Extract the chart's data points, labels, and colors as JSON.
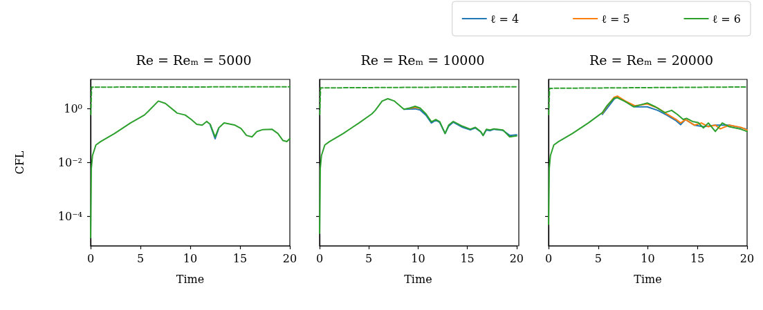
{
  "chart_data": [
    {
      "type": "line",
      "title": "Re = Reₘ = 5000",
      "xlabel": "Time",
      "ylabel": "CFL",
      "log": "y",
      "marker": "none",
      "xlim": [
        0,
        20
      ],
      "xticks": [
        0,
        5,
        10,
        15,
        20
      ],
      "ylim": [
        8e-06,
        12
      ],
      "yticks": [
        {
          "value": 1,
          "label": "10⁰"
        },
        {
          "value": 0.01,
          "label": "10⁻²"
        },
        {
          "value": 0.0001,
          "label": "10⁻⁴"
        }
      ],
      "series": [
        {
          "color": "#1f77b4",
          "x": [
            12,
            12.5,
            12.86
          ],
          "values": [
            0.25,
            0.075,
            0.18
          ]
        },
        {
          "color": "#2ca02c",
          "x": [
            0,
            0.07,
            0.19,
            0.53,
            1,
            2.4,
            4,
            5.4,
            5.77,
            6.8,
            7.5,
            8.7,
            9.5,
            10.1,
            10.65,
            11.2,
            11.65,
            12,
            12.5,
            12.86,
            13.4,
            14.5,
            15.1,
            15.65,
            16.2,
            16.7,
            17.3,
            18.2,
            18.8,
            19.3,
            19.7,
            20
          ],
          "values": [
            1.6e-05,
            0.006,
            0.018,
            0.044,
            0.059,
            0.118,
            0.29,
            0.57,
            0.77,
            1.88,
            1.55,
            0.67,
            0.57,
            0.39,
            0.26,
            0.24,
            0.33,
            0.26,
            0.088,
            0.19,
            0.29,
            0.24,
            0.18,
            0.1,
            0.088,
            0.14,
            0.165,
            0.17,
            0.118,
            0.065,
            0.059,
            0.076
          ]
        },
        {
          "color": "#2ca02c",
          "line_style": "dashed",
          "x": [
            0.02,
            0.1,
            20
          ],
          "values": [
            0.6,
            6.2,
            6.4
          ]
        }
      ]
    },
    {
      "type": "line",
      "title": "Re = Reₘ = 10000",
      "xlabel": "Time",
      "log": "y",
      "marker": "none",
      "tick_labels": "x",
      "xlim": [
        0,
        20
      ],
      "xticks": [
        0,
        5,
        10,
        15,
        20
      ],
      "ylim": [
        8e-06,
        12
      ],
      "yticks": [
        {
          "value": 1,
          "label": null
        },
        {
          "value": 0.01,
          "label": null
        },
        {
          "value": 0.0001,
          "label": null
        }
      ],
      "series": [
        {
          "color": "#1f77b4",
          "x": [
            8.56,
            9.14,
            9.7,
            10.2,
            10.8,
            11.35,
            11.8,
            12.2,
            12.74,
            13.1,
            13.56,
            14.5,
            15.3,
            15.8,
            16.35,
            16.6,
            16.93,
            17.3,
            17.7,
            18.6,
            19.3,
            20
          ],
          "values": [
            0.94,
            0.95,
            0.97,
            0.88,
            0.56,
            0.29,
            0.37,
            0.3,
            0.118,
            0.22,
            0.31,
            0.2,
            0.16,
            0.19,
            0.135,
            0.1,
            0.16,
            0.15,
            0.17,
            0.155,
            0.1,
            0.105
          ]
        },
        {
          "color": "#ff7f0e",
          "x": [
            9.14,
            9.7,
            10.2
          ],
          "values": [
            1.0,
            1.1,
            1.0
          ]
        },
        {
          "color": "#2ca02c",
          "x": [
            0,
            0.07,
            0.19,
            0.53,
            1,
            2.4,
            4,
            5.3,
            5.65,
            6.35,
            6.93,
            7.6,
            8.56,
            9.14,
            9.7,
            10.2,
            10.8,
            11.35,
            11.8,
            12.2,
            12.74,
            13.1,
            13.56,
            14.5,
            15.3,
            15.8,
            16.35,
            16.6,
            16.93,
            17.3,
            17.7,
            18.6,
            19.3,
            20
          ],
          "values": [
            2.3e-05,
            0.006,
            0.018,
            0.044,
            0.059,
            0.118,
            0.29,
            0.63,
            0.85,
            1.88,
            2.3,
            1.88,
            0.94,
            1.04,
            1.2,
            1.04,
            0.63,
            0.32,
            0.39,
            0.32,
            0.118,
            0.24,
            0.33,
            0.22,
            0.17,
            0.2,
            0.14,
            0.1,
            0.17,
            0.16,
            0.175,
            0.16,
            0.088,
            0.096
          ]
        },
        {
          "color": "#2ca02c",
          "line_style": "dashed",
          "x": [
            0.02,
            0.1,
            20
          ],
          "values": [
            0.6,
            5.8,
            6.4
          ]
        }
      ]
    },
    {
      "type": "line",
      "title": "Re = Reₘ = 20000",
      "xlabel": "Time",
      "log": "y",
      "marker": "none",
      "tick_labels": "x",
      "legend": "top left",
      "xlim": [
        0,
        20
      ],
      "xticks": [
        0,
        5,
        10,
        15,
        20
      ],
      "ylim": [
        8e-06,
        12
      ],
      "yticks": [
        {
          "value": 1,
          "label": null
        },
        {
          "value": 0.01,
          "label": null
        },
        {
          "value": 0.0001,
          "label": null
        }
      ],
      "series": [
        {
          "name": "ℓ = 4",
          "color": "#1f77b4",
          "x": [
            5.42,
            5.88,
            6.6,
            6.93,
            7.74,
            8.7,
            9.95,
            11,
            11.9,
            12.86,
            13.3,
            13.8,
            14.7,
            15.6,
            16.8,
            18.2,
            20
          ],
          "values": [
            0.6,
            1.0,
            2.2,
            2.7,
            1.8,
            1.15,
            1.15,
            0.85,
            0.57,
            0.35,
            0.25,
            0.39,
            0.24,
            0.21,
            0.24,
            0.24,
            0.17
          ]
        },
        {
          "name": "ℓ = 5",
          "color": "#ff7f0e",
          "x": [
            5.42,
            5.88,
            6.6,
            6.93,
            7.74,
            8.7,
            9.95,
            11,
            11.9,
            12.86,
            13.3,
            13.8,
            14.7,
            15.4,
            16.1,
            16.8,
            17.3,
            18.2,
            19.37,
            20
          ],
          "values": [
            0.66,
            1.2,
            2.6,
            2.9,
            1.88,
            1.26,
            1.48,
            1.04,
            0.63,
            0.39,
            0.29,
            0.39,
            0.24,
            0.29,
            0.21,
            0.24,
            0.175,
            0.24,
            0.2,
            0.16
          ]
        },
        {
          "name": "ℓ = 6",
          "color": "#2ca02c",
          "x": [
            0,
            0.07,
            0.19,
            0.53,
            1,
            2.4,
            4,
            5.42,
            5.88,
            6.6,
            6.93,
            7.74,
            8.56,
            9.14,
            9.95,
            10.77,
            11.7,
            12.4,
            12.98,
            13.56,
            13.9,
            14.5,
            15.07,
            15.6,
            16.1,
            16.8,
            17.5,
            18.2,
            19.37,
            20
          ],
          "values": [
            5e-05,
            0.006,
            0.018,
            0.044,
            0.059,
            0.118,
            0.29,
            0.7,
            1.26,
            2.4,
            2.5,
            1.8,
            1.15,
            1.32,
            1.6,
            1.15,
            0.7,
            0.85,
            0.6,
            0.39,
            0.43,
            0.33,
            0.3,
            0.19,
            0.29,
            0.14,
            0.29,
            0.21,
            0.17,
            0.14
          ]
        },
        {
          "color": "#2ca02c",
          "line_style": "dashed",
          "x": [
            0.02,
            0.1,
            20
          ],
          "values": [
            0.6,
            5.6,
            6.3
          ]
        }
      ]
    }
  ]
}
